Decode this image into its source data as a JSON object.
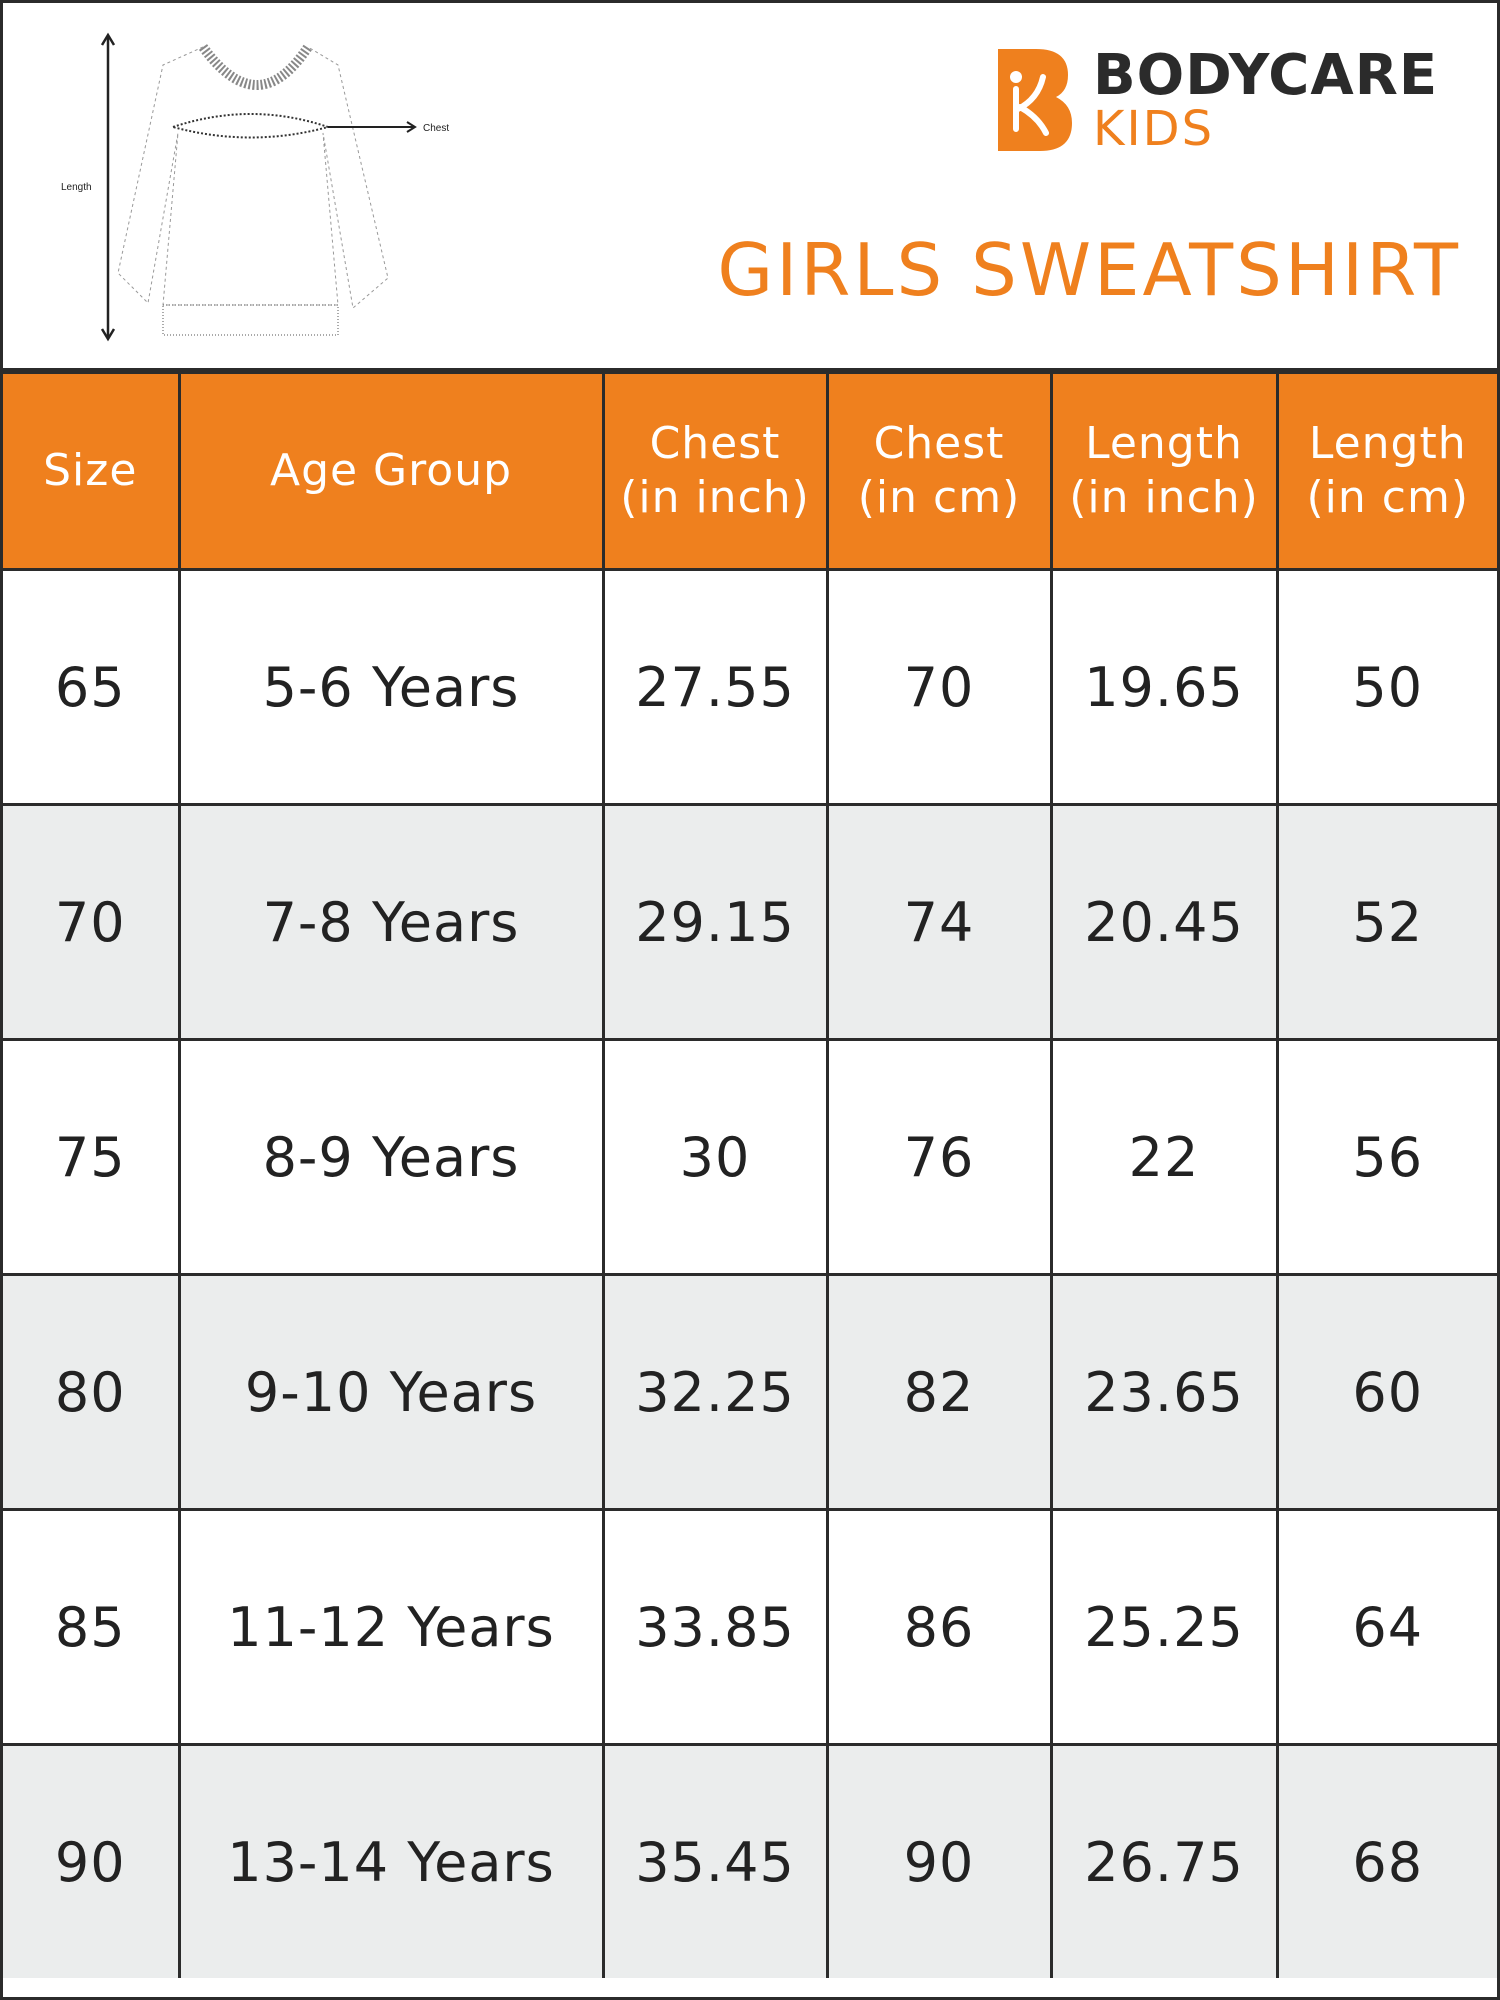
{
  "diagram": {
    "length_label": "Length",
    "chest_label": "Chest"
  },
  "brand": {
    "name": "BODYCARE",
    "sub": "KIDS",
    "accent": "#ef801e",
    "dark": "#2b2b2b"
  },
  "title": "GIRLS SWEATSHIRT",
  "table": {
    "headers": [
      {
        "l1": "Size",
        "l2": ""
      },
      {
        "l1": "Age Group",
        "l2": ""
      },
      {
        "l1": "Chest",
        "l2": "(in inch)"
      },
      {
        "l1": "Chest",
        "l2": "(in cm)"
      },
      {
        "l1": "Length",
        "l2": "(in inch)"
      },
      {
        "l1": "Length",
        "l2": "(in cm)"
      }
    ],
    "rows": [
      [
        "65",
        "5-6 Years",
        "27.55",
        "70",
        "19.65",
        "50"
      ],
      [
        "70",
        "7-8 Years",
        "29.15",
        "74",
        "20.45",
        "52"
      ],
      [
        "75",
        "8-9 Years",
        "30",
        "76",
        "22",
        "56"
      ],
      [
        "80",
        "9-10 Years",
        "32.25",
        "82",
        "23.65",
        "60"
      ],
      [
        "85",
        "11-12 Years",
        "33.85",
        "86",
        "25.25",
        "64"
      ],
      [
        "90",
        "13-14 Years",
        "35.45",
        "90",
        "26.75",
        "68"
      ]
    ],
    "header_color": "#ef801e",
    "alt_row_color": "#ebeded"
  }
}
